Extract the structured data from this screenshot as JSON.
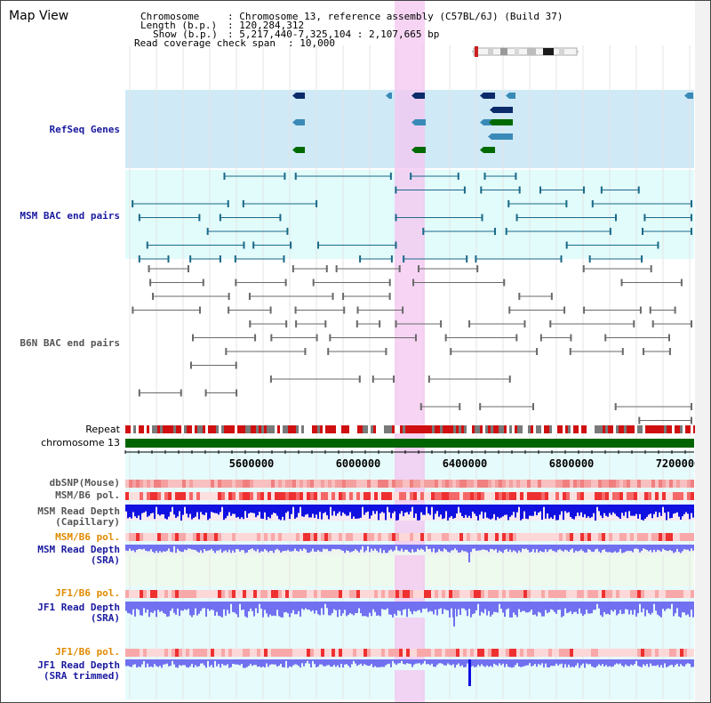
{
  "title": "Map View",
  "info": {
    "chromosome_label": "Chromosome",
    "chromosome_value": ": Chromosome 13, reference assembly (C57BL/6J) (Build 37)",
    "length_label": "Length (b.p.)",
    "length_value": ": 120,284,312",
    "show_label": "Show (b.p.)",
    "show_value": ": 5,217,440-7,325,104 : 2,107,665 bp",
    "coverage_label": "Read coverage check span",
    "coverage_value": ": 10,000"
  },
  "tracks": {
    "refseq": "RefSeq Genes",
    "msm_bac": "MSM BAC end pairs",
    "b6n_bac": "B6N BAC end pairs",
    "repeat": "Repeat",
    "chromosome": "chromosome 13",
    "dbsnp": "dbSNP(Mouse)",
    "msm_b6_pol": "MSM/B6 pol.",
    "msm_read_depth_cap": "MSM Read Depth\n(Capillary)",
    "msm_b6_pol2": "MSM/B6 pol.",
    "msm_read_depth_sra": "MSM Read Depth\n(SRA)",
    "jf1_b6_pol": "JF1/B6 pol.",
    "jf1_read_depth_sra": "JF1 Read Depth\n(SRA)",
    "jf1_b6_pol2": "JF1/B6 pol.",
    "jf1_read_depth_trim": "JF1 Read Depth\n(SRA trimmed)"
  },
  "axis": {
    "ticks": [
      "5600000",
      "6000000",
      "6400000",
      "6800000",
      "7200000"
    ]
  },
  "colors": {
    "highlight": "#f4c6f0",
    "refseq_bg": "#cfe9f6",
    "msm_bg": "#e2fbfb",
    "chromosome": "#006400",
    "repeat_red": "#d01010",
    "depth_blue": "#1010e0",
    "depth_light": "#7070f0",
    "gene_dark": "#0a2a6a",
    "gene_mid": "#3a8ab8",
    "gene_green": "#006a00"
  }
}
